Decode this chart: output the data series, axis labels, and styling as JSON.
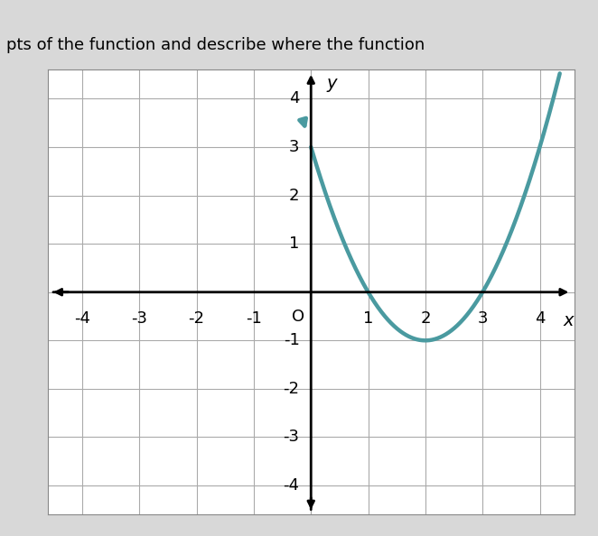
{
  "header_text": "pts of the function and describe where the function",
  "xlabel": "x",
  "ylabel": "y",
  "xlim": [
    -4.6,
    4.6
  ],
  "ylim": [
    -4.6,
    4.6
  ],
  "x_ticks": [
    -4,
    -3,
    -2,
    -1,
    0,
    1,
    2,
    3,
    4
  ],
  "y_ticks": [
    -4,
    -3,
    -2,
    -1,
    1,
    2,
    3,
    4
  ],
  "curve_color": "#4a9aa0",
  "curve_linewidth": 3.2,
  "background_color": "#d8d8d8",
  "plot_bg_color": "#ffffff",
  "grid_color": "#aaaaaa",
  "coefficients": [
    1,
    -4,
    3
  ],
  "x_range_start": 0.0,
  "x_range_end": 4.35,
  "text_color": "#000000",
  "axis_color": "#000000",
  "font_size": 14,
  "tick_font_size": 13
}
